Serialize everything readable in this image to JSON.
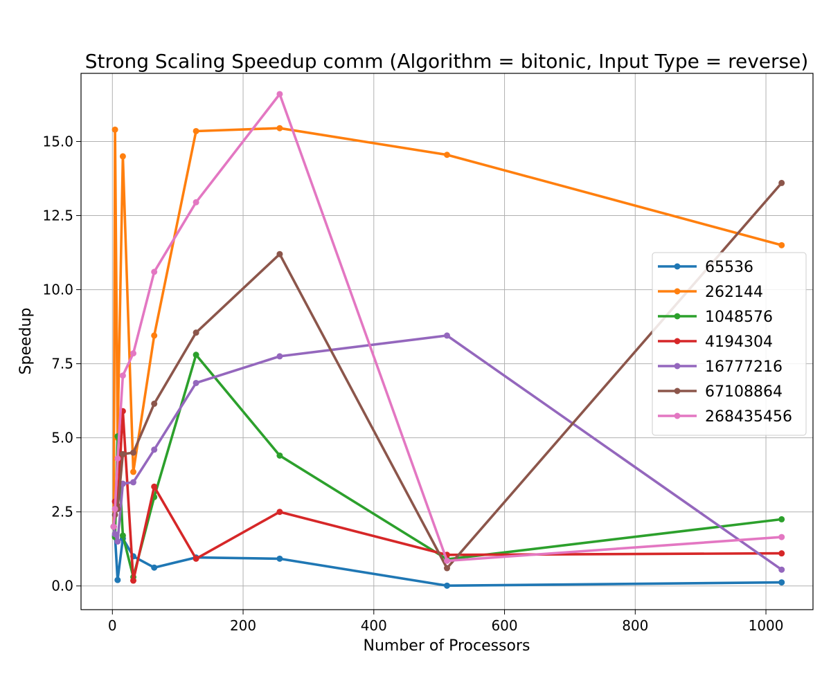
{
  "chart_data": {
    "type": "line",
    "title": "Strong Scaling Speedup comm (Algorithm = bitonic, Input Type = reverse)",
    "xlabel": "Number of Processors",
    "ylabel": "Speedup",
    "xlim": [
      -48,
      1072
    ],
    "ylim": [
      -0.8,
      17.3
    ],
    "xticks": [
      0,
      200,
      400,
      600,
      800,
      1000
    ],
    "xtick_labels": [
      "0",
      "200",
      "400",
      "600",
      "800",
      "1000"
    ],
    "yticks": [
      0.0,
      2.5,
      5.0,
      7.5,
      10.0,
      12.5,
      15.0
    ],
    "ytick_labels": [
      "0.0",
      "2.5",
      "5.0",
      "7.5",
      "10.0",
      "12.5",
      "15.0"
    ],
    "grid": true,
    "legend_position": "center-right",
    "x": [
      2,
      4,
      8,
      16,
      32,
      64,
      128,
      256,
      512,
      1024
    ],
    "series": [
      {
        "name": "65536",
        "color": "#1f77b4",
        "values": [
          2.0,
          1.7,
          0.2,
          1.6,
          1.0,
          0.62,
          0.96,
          0.92,
          0.01,
          0.12
        ]
      },
      {
        "name": "262144",
        "color": "#ff7f0e",
        "values": [
          2.0,
          15.4,
          5.0,
          14.5,
          3.85,
          8.45,
          15.35,
          15.45,
          14.55,
          11.5
        ]
      },
      {
        "name": "1048576",
        "color": "#2ca02c",
        "values": [
          2.0,
          1.65,
          5.05,
          1.7,
          0.3,
          3.0,
          7.8,
          4.4,
          0.9,
          2.25
        ]
      },
      {
        "name": "4194304",
        "color": "#d62728",
        "values": [
          2.0,
          2.85,
          2.7,
          5.9,
          0.18,
          3.35,
          0.92,
          2.5,
          1.05,
          1.1
        ]
      },
      {
        "name": "16777216",
        "color": "#9467bd",
        "values": [
          2.0,
          1.75,
          1.5,
          3.45,
          3.5,
          4.6,
          6.85,
          7.75,
          8.45,
          0.55
        ]
      },
      {
        "name": "67108864",
        "color": "#8c564b",
        "values": [
          2.0,
          2.4,
          2.6,
          4.45,
          4.5,
          6.15,
          8.55,
          11.2,
          0.6,
          13.6
        ]
      },
      {
        "name": "268435456",
        "color": "#e377c2",
        "values": [
          2.0,
          2.6,
          4.3,
          7.1,
          7.85,
          10.6,
          12.95,
          16.6,
          0.85,
          1.65
        ]
      }
    ]
  }
}
